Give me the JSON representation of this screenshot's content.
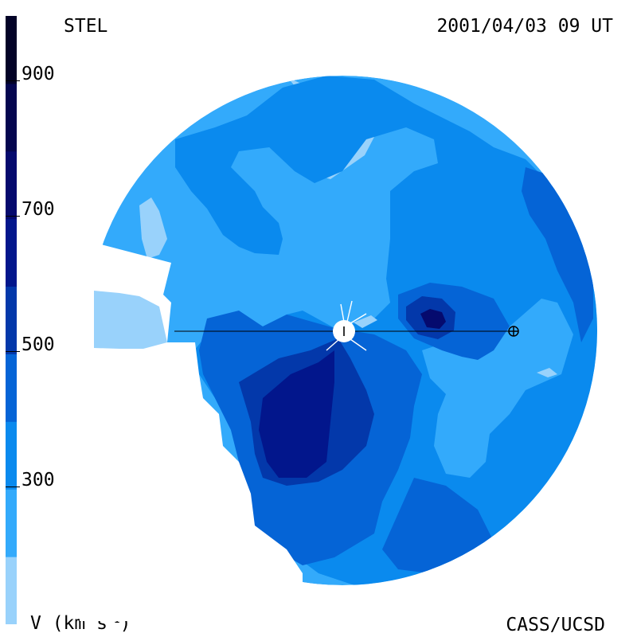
{
  "header": {
    "instrument": "STEL",
    "timestamp": "2001/04/03 09 UT"
  },
  "footer": {
    "credit": "CASS/UCSD",
    "unit_label": "V (km s",
    "unit_exponent": "-1",
    "unit_close": ")"
  },
  "colorbar": {
    "ticks": [
      "900",
      "700",
      "500",
      "300"
    ],
    "tick_values": [
      900,
      700,
      500,
      300
    ],
    "range": [
      100,
      1000
    ],
    "levels": [
      {
        "min": 100,
        "max": 200,
        "color": "#99d2fb"
      },
      {
        "min": 200,
        "max": 300,
        "color": "#33aafb"
      },
      {
        "min": 300,
        "max": 400,
        "color": "#0a8aee"
      },
      {
        "min": 400,
        "max": 500,
        "color": "#0564d6"
      },
      {
        "min": 500,
        "max": 600,
        "color": "#0338aa"
      },
      {
        "min": 600,
        "max": 700,
        "color": "#02168c"
      },
      {
        "min": 700,
        "max": 800,
        "color": "#050a6e"
      },
      {
        "min": 800,
        "max": 900,
        "color": "#04064f"
      },
      {
        "min": 900,
        "max": 1000,
        "color": "#020227"
      }
    ]
  },
  "map": {
    "markers": [
      {
        "name": "sun",
        "symbol": "white disk"
      },
      {
        "name": "earth",
        "symbol": "circled plus"
      }
    ]
  }
}
